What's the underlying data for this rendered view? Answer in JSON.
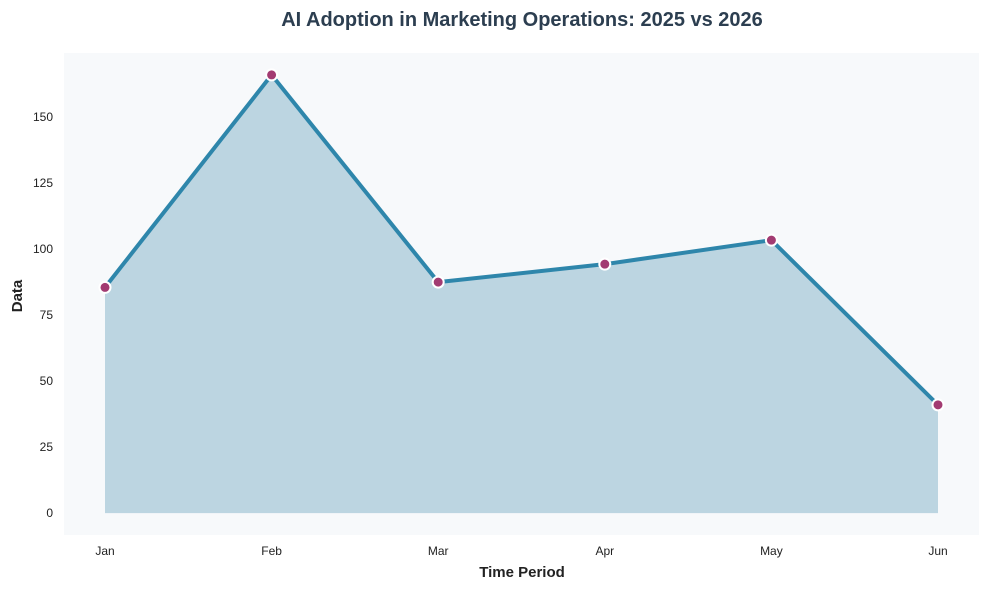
{
  "chart_data": {
    "type": "area",
    "title": "AI Adoption in Marketing Operations: 2025 vs 2026",
    "xlabel": "Time Period",
    "ylabel": "Data",
    "categories": [
      "Jan",
      "Feb",
      "Mar",
      "Apr",
      "May",
      "Jun"
    ],
    "series": [
      {
        "name": "Data",
        "values": [
          85.5,
          166,
          87.5,
          94.3,
          103.4,
          41
        ]
      }
    ],
    "yticks": [
      0,
      25,
      50,
      75,
      100,
      125,
      150
    ],
    "ylim": [
      -8.3,
      174.3
    ],
    "grid": false,
    "legend": "none",
    "colors": {
      "plot_background": "#f7f9fb",
      "line": "#2e86ab",
      "fill": "#bcd5e1",
      "marker": "#a23b72",
      "marker_edge": "#ffffff",
      "title": "#2c3e50",
      "text": "#222222"
    }
  }
}
